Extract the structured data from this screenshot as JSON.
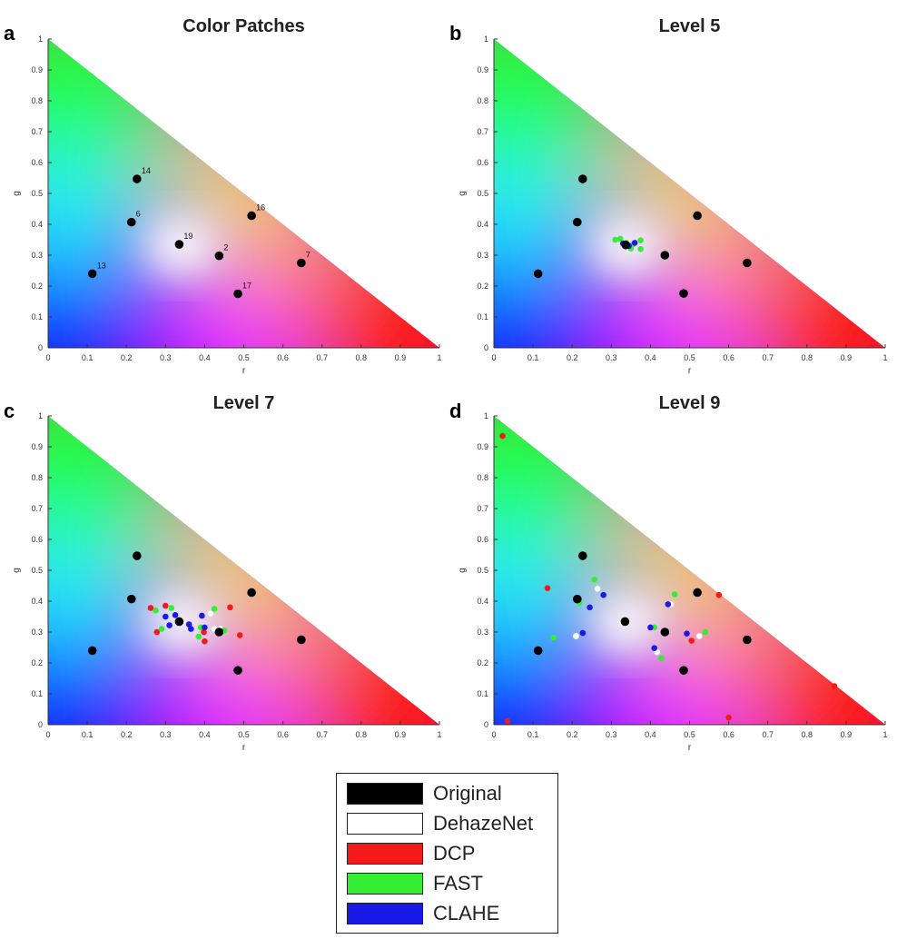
{
  "colors": {
    "original": "#000000",
    "dehazenet": "#ffffff",
    "dcp": "#f41a1a",
    "fast": "#33ee33",
    "clahe": "#1a1ae6"
  },
  "legend": {
    "entries": [
      {
        "key": "original",
        "label": "Original"
      },
      {
        "key": "dehazenet",
        "label": "DehazeNet"
      },
      {
        "key": "dcp",
        "label": "DCP"
      },
      {
        "key": "fast",
        "label": "FAST"
      },
      {
        "key": "clahe",
        "label": "CLAHE"
      }
    ]
  },
  "chart_data": [
    {
      "panel_label": "a",
      "title": "Color Patches",
      "type": "scatter",
      "xlabel": "r",
      "ylabel": "g",
      "xlim": [
        0,
        1
      ],
      "ylim": [
        0,
        1
      ],
      "xticks": [
        "0",
        "0.1",
        "0.2",
        "0.3",
        "0.4",
        "0.5",
        "0.6",
        "0.7",
        "0.8",
        "0.9",
        "1"
      ],
      "yticks": [
        "0",
        "0.1",
        "0.2",
        "0.3",
        "0.4",
        "0.5",
        "0.6",
        "0.7",
        "0.8",
        "0.9",
        "1"
      ],
      "series": [
        {
          "key": "original",
          "points": [
            [
              0.227,
              0.547
            ],
            [
              0.213,
              0.407
            ],
            [
              0.335,
              0.335
            ],
            [
              0.52,
              0.428
            ],
            [
              0.437,
              0.298
            ],
            [
              0.647,
              0.275
            ],
            [
              0.113,
              0.24
            ],
            [
              0.485,
              0.175
            ]
          ],
          "labels": [
            "14",
            "6",
            "19",
            "16",
            "2",
            "7",
            "13",
            "17"
          ]
        }
      ]
    },
    {
      "panel_label": "b",
      "title": "Level 5",
      "type": "scatter",
      "xlabel": "r",
      "ylabel": "g",
      "xlim": [
        0,
        1
      ],
      "ylim": [
        0,
        1
      ],
      "xticks": [
        "0",
        "0.1",
        "0.2",
        "0.3",
        "0.4",
        "0.5",
        "0.6",
        "0.7",
        "0.8",
        "0.9",
        "1"
      ],
      "yticks": [
        "0",
        "0.1",
        "0.2",
        "0.3",
        "0.4",
        "0.5",
        "0.6",
        "0.7",
        "0.8",
        "0.9",
        "1"
      ],
      "series": [
        {
          "key": "fast",
          "points": [
            [
              0.31,
              0.35
            ],
            [
              0.323,
              0.353
            ],
            [
              0.338,
              0.34
            ],
            [
              0.355,
              0.335
            ],
            [
              0.375,
              0.348
            ],
            [
              0.375,
              0.32
            ],
            [
              0.35,
              0.322
            ]
          ]
        },
        {
          "key": "clahe",
          "points": [
            [
              0.33,
              0.338
            ],
            [
              0.345,
              0.33
            ],
            [
              0.36,
              0.34
            ]
          ]
        },
        {
          "key": "original",
          "points": [
            [
              0.227,
              0.547
            ],
            [
              0.213,
              0.407
            ],
            [
              0.52,
              0.428
            ],
            [
              0.113,
              0.24
            ],
            [
              0.437,
              0.3
            ],
            [
              0.647,
              0.275
            ],
            [
              0.485,
              0.176
            ],
            [
              0.337,
              0.333
            ]
          ]
        }
      ]
    },
    {
      "panel_label": "c",
      "title": "Level 7",
      "type": "scatter",
      "xlabel": "r",
      "ylabel": "g",
      "xlim": [
        0,
        1
      ],
      "ylim": [
        0,
        1
      ],
      "xticks": [
        "0",
        "0.1",
        "0.2",
        "0.3",
        "0.4",
        "0.5",
        "0.6",
        "0.7",
        "0.8",
        "0.9",
        "1"
      ],
      "yticks": [
        "0",
        "0.1",
        "0.2",
        "0.3",
        "0.4",
        "0.5",
        "0.6",
        "0.7",
        "0.8",
        "0.9",
        "1"
      ],
      "series": [
        {
          "key": "dehazenet",
          "points": [
            [
              0.415,
              0.36
            ],
            [
              0.44,
              0.31
            ],
            [
              0.425,
              0.31
            ]
          ]
        },
        {
          "key": "dcp",
          "points": [
            [
              0.262,
              0.378
            ],
            [
              0.3,
              0.385
            ],
            [
              0.278,
              0.3
            ],
            [
              0.4,
              0.27
            ],
            [
              0.398,
              0.3
            ],
            [
              0.465,
              0.38
            ],
            [
              0.49,
              0.29
            ]
          ]
        },
        {
          "key": "fast",
          "points": [
            [
              0.275,
              0.37
            ],
            [
              0.315,
              0.378
            ],
            [
              0.29,
              0.31
            ],
            [
              0.385,
              0.285
            ],
            [
              0.39,
              0.315
            ],
            [
              0.425,
              0.375
            ],
            [
              0.45,
              0.305
            ]
          ]
        },
        {
          "key": "clahe",
          "points": [
            [
              0.3,
              0.35
            ],
            [
              0.31,
              0.322
            ],
            [
              0.325,
              0.355
            ],
            [
              0.36,
              0.325
            ],
            [
              0.365,
              0.31
            ],
            [
              0.393,
              0.353
            ],
            [
              0.4,
              0.315
            ]
          ]
        },
        {
          "key": "original",
          "points": [
            [
              0.227,
              0.547
            ],
            [
              0.213,
              0.407
            ],
            [
              0.52,
              0.428
            ],
            [
              0.113,
              0.24
            ],
            [
              0.335,
              0.334
            ],
            [
              0.647,
              0.275
            ],
            [
              0.485,
              0.176
            ],
            [
              0.437,
              0.3
            ]
          ]
        }
      ]
    },
    {
      "panel_label": "d",
      "title": "Level 9",
      "type": "scatter",
      "xlabel": "r",
      "ylabel": "g",
      "xlim": [
        0,
        1
      ],
      "ylim": [
        0,
        1
      ],
      "xticks": [
        "0",
        "0.1",
        "0.2",
        "0.3",
        "0.4",
        "0.5",
        "0.6",
        "0.7",
        "0.8",
        "0.9",
        "1"
      ],
      "yticks": [
        "0",
        "0.1",
        "0.2",
        "0.3",
        "0.4",
        "0.5",
        "0.6",
        "0.7",
        "0.8",
        "0.9",
        "1"
      ],
      "series": [
        {
          "key": "dehazenet",
          "points": [
            [
              0.265,
              0.44
            ],
            [
              0.327,
              0.33
            ],
            [
              0.21,
              0.287
            ],
            [
              0.452,
              0.39
            ],
            [
              0.417,
              0.235
            ],
            [
              0.525,
              0.287
            ]
          ]
        },
        {
          "key": "dcp",
          "points": [
            [
              0.022,
              0.935
            ],
            [
              0.137,
              0.442
            ],
            [
              0.575,
              0.42
            ],
            [
              0.505,
              0.272
            ],
            [
              0.87,
              0.125
            ],
            [
              0.6,
              0.023
            ],
            [
              0.035,
              0.012
            ]
          ]
        },
        {
          "key": "fast",
          "points": [
            [
              0.257,
              0.47
            ],
            [
              0.218,
              0.395
            ],
            [
              0.462,
              0.422
            ],
            [
              0.41,
              0.315
            ],
            [
              0.152,
              0.282
            ],
            [
              0.428,
              0.215
            ],
            [
              0.54,
              0.3
            ]
          ]
        },
        {
          "key": "clahe",
          "points": [
            [
              0.28,
              0.42
            ],
            [
              0.245,
              0.38
            ],
            [
              0.227,
              0.297
            ],
            [
              0.4,
              0.315
            ],
            [
              0.445,
              0.39
            ],
            [
              0.41,
              0.248
            ],
            [
              0.493,
              0.295
            ]
          ]
        },
        {
          "key": "original",
          "points": [
            [
              0.227,
              0.547
            ],
            [
              0.213,
              0.407
            ],
            [
              0.52,
              0.428
            ],
            [
              0.113,
              0.24
            ],
            [
              0.335,
              0.334
            ],
            [
              0.437,
              0.3
            ],
            [
              0.647,
              0.275
            ],
            [
              0.485,
              0.176
            ]
          ]
        }
      ]
    }
  ]
}
